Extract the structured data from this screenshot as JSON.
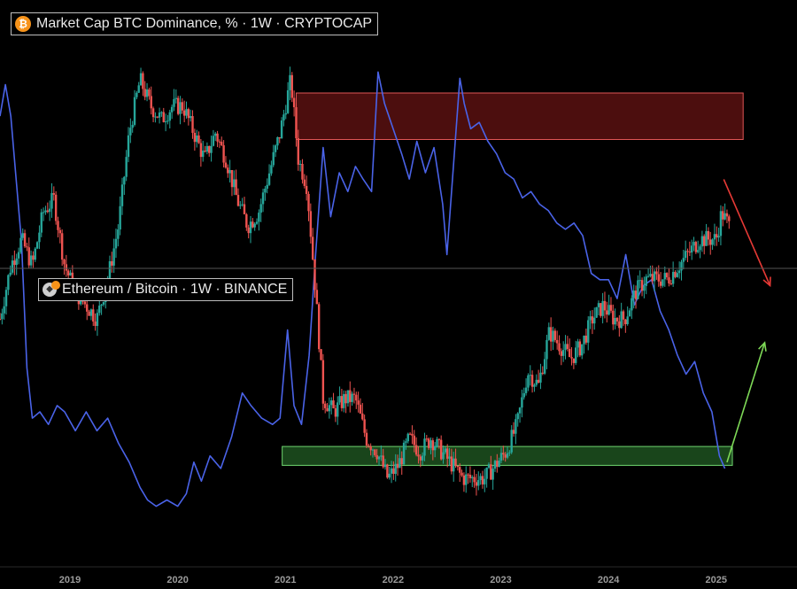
{
  "chart_data": {
    "type": "line",
    "title": "",
    "x_ticks": [
      "2019",
      "2020",
      "2021",
      "2022",
      "2023",
      "2024",
      "2025"
    ],
    "x_range": [
      2018.35,
      2025.75
    ],
    "series": [
      {
        "name": "Market Cap BTC Dominance, % · 1W · CRYPTOCAP",
        "render": "candlestick",
        "up_color": "#26a69a",
        "down_color": "#ef5350",
        "y_range": [
          36,
          72
        ],
        "points": [
          [
            2018.35,
            52
          ],
          [
            2018.45,
            56
          ],
          [
            2018.55,
            58
          ],
          [
            2018.65,
            56
          ],
          [
            2018.75,
            60
          ],
          [
            2018.85,
            61
          ],
          [
            2018.95,
            56
          ],
          [
            2019.05,
            54
          ],
          [
            2019.15,
            53
          ],
          [
            2019.25,
            52
          ],
          [
            2019.35,
            55
          ],
          [
            2019.45,
            59
          ],
          [
            2019.55,
            66
          ],
          [
            2019.65,
            70
          ],
          [
            2019.75,
            68
          ],
          [
            2019.85,
            67
          ],
          [
            2019.95,
            68
          ],
          [
            2020.05,
            68
          ],
          [
            2020.15,
            66
          ],
          [
            2020.25,
            64
          ],
          [
            2020.35,
            66
          ],
          [
            2020.45,
            64
          ],
          [
            2020.55,
            61
          ],
          [
            2020.65,
            59
          ],
          [
            2020.75,
            60
          ],
          [
            2020.85,
            63
          ],
          [
            2020.95,
            66
          ],
          [
            2021.05,
            70
          ],
          [
            2021.12,
            64
          ],
          [
            2021.2,
            62
          ],
          [
            2021.28,
            54
          ],
          [
            2021.35,
            46
          ],
          [
            2021.45,
            45
          ],
          [
            2021.55,
            46
          ],
          [
            2021.65,
            46
          ],
          [
            2021.75,
            43
          ],
          [
            2021.85,
            42
          ],
          [
            2021.95,
            40
          ],
          [
            2022.05,
            41
          ],
          [
            2022.15,
            43
          ],
          [
            2022.25,
            42
          ],
          [
            2022.35,
            43
          ],
          [
            2022.45,
            42
          ],
          [
            2022.55,
            41
          ],
          [
            2022.65,
            40
          ],
          [
            2022.75,
            40
          ],
          [
            2022.85,
            40
          ],
          [
            2022.95,
            41
          ],
          [
            2023.05,
            42
          ],
          [
            2023.15,
            44
          ],
          [
            2023.25,
            48
          ],
          [
            2023.35,
            47
          ],
          [
            2023.45,
            51
          ],
          [
            2023.55,
            50
          ],
          [
            2023.65,
            49
          ],
          [
            2023.75,
            50
          ],
          [
            2023.85,
            52
          ],
          [
            2023.95,
            53
          ],
          [
            2024.05,
            52
          ],
          [
            2024.15,
            52
          ],
          [
            2024.25,
            54
          ],
          [
            2024.35,
            55
          ],
          [
            2024.45,
            55
          ],
          [
            2024.55,
            55
          ],
          [
            2024.65,
            56
          ],
          [
            2024.75,
            57
          ],
          [
            2024.85,
            58
          ],
          [
            2024.95,
            58
          ],
          [
            2025.0,
            58
          ],
          [
            2025.05,
            60
          ],
          [
            2025.12,
            59
          ]
        ]
      },
      {
        "name": "Ethereum / Bitcoin · 1W · BINANCE",
        "render": "line",
        "color": "#4a63e8",
        "y_range": [
          0.014,
          0.09
        ],
        "points": [
          [
            2018.35,
            0.08
          ],
          [
            2018.4,
            0.085
          ],
          [
            2018.45,
            0.08
          ],
          [
            2018.5,
            0.07
          ],
          [
            2018.55,
            0.06
          ],
          [
            2018.6,
            0.04
          ],
          [
            2018.65,
            0.032
          ],
          [
            2018.72,
            0.033
          ],
          [
            2018.8,
            0.031
          ],
          [
            2018.88,
            0.034
          ],
          [
            2018.95,
            0.033
          ],
          [
            2019.05,
            0.03
          ],
          [
            2019.15,
            0.033
          ],
          [
            2019.25,
            0.03
          ],
          [
            2019.35,
            0.032
          ],
          [
            2019.45,
            0.028
          ],
          [
            2019.55,
            0.025
          ],
          [
            2019.65,
            0.021
          ],
          [
            2019.72,
            0.019
          ],
          [
            2019.8,
            0.018
          ],
          [
            2019.9,
            0.019
          ],
          [
            2020.0,
            0.018
          ],
          [
            2020.08,
            0.02
          ],
          [
            2020.15,
            0.025
          ],
          [
            2020.22,
            0.022
          ],
          [
            2020.3,
            0.026
          ],
          [
            2020.4,
            0.024
          ],
          [
            2020.5,
            0.029
          ],
          [
            2020.6,
            0.036
          ],
          [
            2020.68,
            0.034
          ],
          [
            2020.78,
            0.032
          ],
          [
            2020.88,
            0.031
          ],
          [
            2020.95,
            0.032
          ],
          [
            2021.02,
            0.046
          ],
          [
            2021.08,
            0.034
          ],
          [
            2021.15,
            0.031
          ],
          [
            2021.22,
            0.042
          ],
          [
            2021.28,
            0.058
          ],
          [
            2021.35,
            0.075
          ],
          [
            2021.42,
            0.064
          ],
          [
            2021.5,
            0.071
          ],
          [
            2021.58,
            0.068
          ],
          [
            2021.65,
            0.072
          ],
          [
            2021.72,
            0.07
          ],
          [
            2021.8,
            0.068
          ],
          [
            2021.86,
            0.087
          ],
          [
            2021.92,
            0.082
          ],
          [
            2022.0,
            0.078
          ],
          [
            2022.08,
            0.074
          ],
          [
            2022.15,
            0.07
          ],
          [
            2022.22,
            0.076
          ],
          [
            2022.3,
            0.071
          ],
          [
            2022.38,
            0.075
          ],
          [
            2022.46,
            0.066
          ],
          [
            2022.5,
            0.058
          ],
          [
            2022.56,
            0.072
          ],
          [
            2022.62,
            0.086
          ],
          [
            2022.66,
            0.082
          ],
          [
            2022.72,
            0.078
          ],
          [
            2022.8,
            0.079
          ],
          [
            2022.88,
            0.076
          ],
          [
            2022.96,
            0.074
          ],
          [
            2023.04,
            0.071
          ],
          [
            2023.12,
            0.07
          ],
          [
            2023.2,
            0.067
          ],
          [
            2023.28,
            0.068
          ],
          [
            2023.36,
            0.066
          ],
          [
            2023.44,
            0.065
          ],
          [
            2023.52,
            0.063
          ],
          [
            2023.6,
            0.062
          ],
          [
            2023.68,
            0.063
          ],
          [
            2023.76,
            0.061
          ],
          [
            2023.84,
            0.055
          ],
          [
            2023.92,
            0.054
          ],
          [
            2024.0,
            0.054
          ],
          [
            2024.08,
            0.051
          ],
          [
            2024.16,
            0.058
          ],
          [
            2024.24,
            0.05
          ],
          [
            2024.32,
            0.053
          ],
          [
            2024.4,
            0.054
          ],
          [
            2024.48,
            0.049
          ],
          [
            2024.56,
            0.046
          ],
          [
            2024.64,
            0.042
          ],
          [
            2024.72,
            0.039
          ],
          [
            2024.8,
            0.041
          ],
          [
            2024.88,
            0.036
          ],
          [
            2024.96,
            0.033
          ],
          [
            2025.03,
            0.026
          ],
          [
            2025.08,
            0.024
          ]
        ]
      }
    ],
    "annotations": {
      "resistance_zone": {
        "x": [
          2021.1,
          2025.25
        ],
        "y": [
          65.5,
          69.0
        ],
        "series": 0,
        "color": "#8b1a1a"
      },
      "support_zone": {
        "x": [
          2020.97,
          2025.15
        ],
        "y": [
          0.0245,
          0.0275
        ],
        "series": 1,
        "color": "#2e7d32"
      },
      "down_arrow": {
        "from": [
          2025.07,
          62.5
        ],
        "to": [
          2025.5,
          54.5
        ],
        "series": 0,
        "color": "#e53935"
      },
      "up_arrow": {
        "from": [
          2025.1,
          0.025
        ],
        "to": [
          2025.45,
          0.044
        ],
        "series": 1,
        "color": "#7ed957"
      }
    },
    "grid": false,
    "legend": "top-left"
  }
}
